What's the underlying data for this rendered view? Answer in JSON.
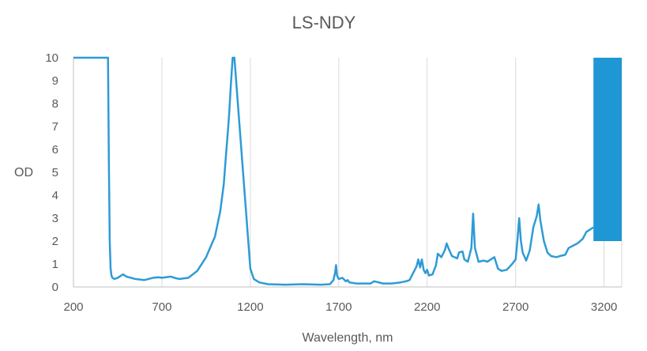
{
  "chart_data": {
    "type": "line",
    "title": "LS-NDY",
    "xlabel": "Wavelength, nm",
    "ylabel": "OD",
    "xlim": [
      200,
      3300
    ],
    "ylim": [
      0,
      10
    ],
    "x_ticks": [
      "200",
      "700",
      "1200",
      "1700",
      "2200",
      "2700",
      "3200"
    ],
    "y_ticks": [
      "0",
      "1",
      "2",
      "3",
      "4",
      "5",
      "6",
      "7",
      "8",
      "9",
      "10"
    ],
    "grid": "vertical",
    "legend": "none",
    "line_color": "#2E9BD6",
    "fill_color": "#1F97D5",
    "series": [
      {
        "x": [
          200,
          395,
          400,
          405,
          410,
          415,
          420,
          430,
          450,
          480,
          500,
          550,
          600,
          650,
          680,
          700,
          750,
          780,
          800,
          850,
          900,
          950,
          1000,
          1030,
          1050,
          1060,
          1070,
          1080,
          1090,
          1100,
          1105,
          1110,
          1200,
          1220,
          1250,
          1300,
          1400,
          1500,
          1600,
          1650,
          1670,
          1680,
          1685,
          1690,
          1700,
          1720,
          1740,
          1750,
          1760,
          1800,
          1880,
          1900,
          1950,
          2000,
          2050,
          2080,
          2100,
          2140,
          2150,
          2160,
          2170,
          2180,
          2190,
          2200,
          2210,
          2230,
          2250,
          2260,
          2280,
          2300,
          2310,
          2320,
          2340,
          2370,
          2380,
          2400,
          2410,
          2430,
          2450,
          2460,
          2470,
          2490,
          2520,
          2540,
          2560,
          2580,
          2600,
          2620,
          2650,
          2680,
          2700,
          2710,
          2720,
          2730,
          2740,
          2760,
          2780,
          2800,
          2820,
          2830,
          2840,
          2860,
          2880,
          2900,
          2930,
          2950,
          2980,
          3000,
          3050,
          3080,
          3100,
          3140
        ],
        "y": [
          10,
          10,
          5.5,
          2.0,
          0.8,
          0.5,
          0.4,
          0.35,
          0.4,
          0.55,
          0.45,
          0.35,
          0.3,
          0.4,
          0.42,
          0.4,
          0.45,
          0.38,
          0.35,
          0.4,
          0.7,
          1.3,
          2.2,
          3.3,
          4.5,
          5.5,
          6.5,
          7.5,
          8.8,
          10,
          10,
          10,
          0.8,
          0.35,
          0.2,
          0.12,
          0.1,
          0.12,
          0.1,
          0.12,
          0.3,
          0.65,
          0.95,
          0.5,
          0.35,
          0.4,
          0.25,
          0.3,
          0.2,
          0.15,
          0.15,
          0.25,
          0.15,
          0.15,
          0.2,
          0.25,
          0.3,
          0.9,
          1.2,
          0.85,
          1.2,
          0.75,
          0.6,
          0.75,
          0.5,
          0.55,
          0.95,
          1.45,
          1.3,
          1.6,
          1.9,
          1.7,
          1.35,
          1.25,
          1.5,
          1.55,
          1.2,
          1.1,
          1.7,
          3.2,
          1.7,
          1.1,
          1.15,
          1.1,
          1.2,
          1.3,
          0.8,
          0.7,
          0.75,
          1.0,
          1.2,
          2.0,
          3.0,
          2.0,
          1.5,
          1.15,
          1.6,
          2.6,
          3.1,
          3.6,
          2.9,
          2.0,
          1.5,
          1.35,
          1.3,
          1.35,
          1.4,
          1.7,
          1.9,
          2.1,
          2.4,
          2.6
        ]
      }
    ],
    "noise_band": {
      "x_start": 3140,
      "x_end": 3300,
      "y_min": 2.0,
      "y_max": 10
    }
  }
}
